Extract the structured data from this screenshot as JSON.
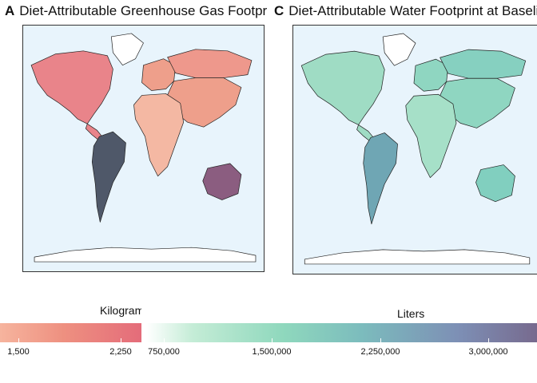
{
  "panels": [
    {
      "tag": "A",
      "title": "Diet-Attributable Greenhouse Gas Footprint"
    },
    {
      "tag": "C",
      "title": "Diet-Attributable Water Footprint at Baseline"
    }
  ],
  "legend_a": {
    "title": "Kilograms",
    "ticks": [
      "1,500",
      "2,250"
    ],
    "colors": [
      "#f6b49e",
      "#ee9080",
      "#e46c7a"
    ]
  },
  "legend_c": {
    "title": "Liters",
    "ticks": [
      "750,000",
      "1,500,000",
      "2,250,000",
      "3,000,000"
    ],
    "colors": [
      "#ffffff",
      "#c4ecd6",
      "#8fd8bd",
      "#7cbcbd",
      "#7d8fb5",
      "#776a8e"
    ]
  },
  "map_colors": {
    "ocean": "#e8f4fc",
    "ghg": {
      "north_america": "#e9848a",
      "south_america": "#4f5869",
      "europe_asia": "#ee9f8b",
      "russia": "#ee988c",
      "africa": "#f4b8a3",
      "australia": "#8b5d80",
      "nodata": "#ffffff"
    },
    "water": {
      "north_america": "#9fdcc4",
      "south_america": "#6fa6b4",
      "europe_asia": "#8fd6c1",
      "russia": "#86d0c0",
      "africa": "#a6e0c8",
      "australia": "#81cfbf",
      "nodata": "#ffffff"
    }
  }
}
